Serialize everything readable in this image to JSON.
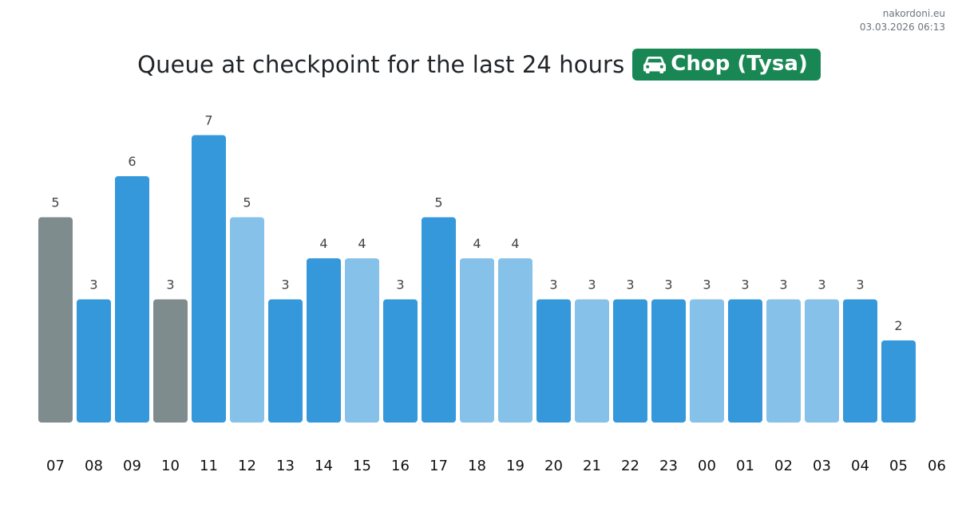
{
  "site": {
    "name": "nakordoni.eu",
    "timestamp": "03.03.2026 06:13"
  },
  "header": {
    "title": "Queue at checkpoint for the last 24 hours",
    "checkpoint": "Chop (Tysa)",
    "checkpoint_icon": "car-icon",
    "badge_color": "#198754"
  },
  "colors": {
    "dark": "#3498db",
    "light": "#85c1e9",
    "gray": "#7f8c8d"
  },
  "chart_data": {
    "type": "bar",
    "title": "Queue at checkpoint for the last 24 hours",
    "xlabel": "",
    "ylabel": "",
    "categories": [
      "07",
      "08",
      "09",
      "10",
      "11",
      "12",
      "13",
      "14",
      "15",
      "16",
      "17",
      "18",
      "19",
      "20",
      "21",
      "22",
      "23",
      "00",
      "01",
      "02",
      "03",
      "04",
      "05"
    ],
    "values": [
      5,
      3,
      6,
      3,
      7,
      5,
      3,
      4,
      4,
      3,
      5,
      4,
      4,
      3,
      3,
      3,
      3,
      3,
      3,
      3,
      3,
      3,
      2
    ],
    "bar_colors": [
      "gray",
      "dark",
      "dark",
      "gray",
      "dark",
      "light",
      "dark",
      "dark",
      "light",
      "dark",
      "dark",
      "light",
      "light",
      "dark",
      "light",
      "dark",
      "dark",
      "light",
      "dark",
      "light",
      "light",
      "dark",
      "dark"
    ],
    "x_tick_labels": [
      "07",
      "08",
      "09",
      "10",
      "11",
      "12",
      "13",
      "14",
      "15",
      "16",
      "17",
      "18",
      "19",
      "20",
      "21",
      "22",
      "23",
      "00",
      "01",
      "02",
      "03",
      "04",
      "05",
      "06"
    ],
    "ylim": [
      0,
      7
    ],
    "grid": false,
    "legend": "none"
  }
}
